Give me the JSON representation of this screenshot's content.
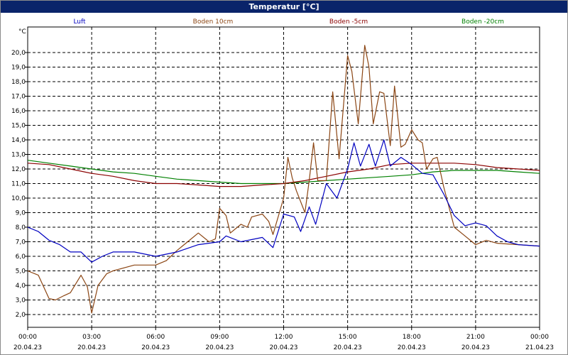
{
  "window": {
    "title": "Temperatur [°C]"
  },
  "chart_data": {
    "type": "line",
    "y_unit": "°C",
    "ylim": [
      1.0,
      21.5
    ],
    "xlim_hours": [
      0,
      24
    ],
    "y_ticks": [
      "2,0",
      "3,0",
      "4,0",
      "5,0",
      "6,0",
      "7,0",
      "8,0",
      "9,0",
      "10,0",
      "11,0",
      "12,0",
      "13,0",
      "14,0",
      "15,0",
      "16,0",
      "17,0",
      "18,0",
      "19,0",
      "20,0"
    ],
    "x_ticks": [
      {
        "time": "00:00",
        "date": "20.04.23"
      },
      {
        "time": "03:00",
        "date": "20.04.23"
      },
      {
        "time": "06:00",
        "date": "20.04.23"
      },
      {
        "time": "09:00",
        "date": "20.04.23"
      },
      {
        "time": "12:00",
        "date": "20.04.23"
      },
      {
        "time": "15:00",
        "date": "20.04.23"
      },
      {
        "time": "18:00",
        "date": "20.04.23"
      },
      {
        "time": "21:00",
        "date": "20.04.23"
      },
      {
        "time": "00:00",
        "date": "21.04.23"
      }
    ],
    "grid": true,
    "legend_position": "top",
    "series": [
      {
        "name": "Luft",
        "color": "#0000c0",
        "points": [
          [
            0,
            8.0
          ],
          [
            0.5,
            7.7
          ],
          [
            1,
            7.1
          ],
          [
            1.5,
            6.8
          ],
          [
            2,
            6.3
          ],
          [
            2.5,
            6.3
          ],
          [
            3,
            5.6
          ],
          [
            3.5,
            6.0
          ],
          [
            4,
            6.3
          ],
          [
            5,
            6.3
          ],
          [
            6,
            6.0
          ],
          [
            7,
            6.3
          ],
          [
            8,
            6.8
          ],
          [
            9,
            7.0
          ],
          [
            9.3,
            7.4
          ],
          [
            10,
            7.0
          ],
          [
            11,
            7.3
          ],
          [
            11.5,
            6.6
          ],
          [
            12,
            8.9
          ],
          [
            12.5,
            8.7
          ],
          [
            12.8,
            7.7
          ],
          [
            13.2,
            9.4
          ],
          [
            13.5,
            8.2
          ],
          [
            14,
            11.0
          ],
          [
            14.5,
            10.0
          ],
          [
            15,
            12.0
          ],
          [
            15.3,
            13.8
          ],
          [
            15.6,
            12.2
          ],
          [
            16,
            13.7
          ],
          [
            16.3,
            12.2
          ],
          [
            16.7,
            14.0
          ],
          [
            17,
            12.2
          ],
          [
            17.5,
            12.8
          ],
          [
            18,
            12.3
          ],
          [
            18.5,
            11.7
          ],
          [
            19,
            11.6
          ],
          [
            19.5,
            10.3
          ],
          [
            20,
            8.8
          ],
          [
            20.5,
            8.1
          ],
          [
            21,
            8.3
          ],
          [
            21.5,
            8.1
          ],
          [
            22,
            7.4
          ],
          [
            22.5,
            7.0
          ],
          [
            23,
            6.8
          ],
          [
            24,
            6.7
          ]
        ]
      },
      {
        "name": "Boden 10cm",
        "color": "#8b4513",
        "points": [
          [
            0,
            5.0
          ],
          [
            0.5,
            4.7
          ],
          [
            1,
            3.1
          ],
          [
            1.3,
            3.0
          ],
          [
            1.7,
            3.3
          ],
          [
            2,
            3.5
          ],
          [
            2.5,
            4.7
          ],
          [
            2.8,
            3.9
          ],
          [
            3,
            2.1
          ],
          [
            3.3,
            4.0
          ],
          [
            3.7,
            4.8
          ],
          [
            4,
            5.0
          ],
          [
            5,
            5.4
          ],
          [
            6,
            5.4
          ],
          [
            6.5,
            5.7
          ],
          [
            7,
            6.4
          ],
          [
            7.5,
            7.0
          ],
          [
            8,
            7.6
          ],
          [
            8.5,
            7.0
          ],
          [
            8.8,
            7.2
          ],
          [
            9,
            9.3
          ],
          [
            9.3,
            8.8
          ],
          [
            9.5,
            7.6
          ],
          [
            10,
            8.2
          ],
          [
            10.3,
            8.0
          ],
          [
            10.5,
            8.7
          ],
          [
            11,
            8.9
          ],
          [
            11.3,
            8.4
          ],
          [
            11.5,
            7.5
          ],
          [
            12,
            10.0
          ],
          [
            12.2,
            12.8
          ],
          [
            12.4,
            11.4
          ],
          [
            12.6,
            10.5
          ],
          [
            13,
            9.0
          ],
          [
            13.2,
            11.2
          ],
          [
            13.4,
            13.8
          ],
          [
            13.6,
            11.2
          ],
          [
            14,
            11.2
          ],
          [
            14.3,
            17.3
          ],
          [
            14.6,
            12.7
          ],
          [
            15,
            19.8
          ],
          [
            15.2,
            18.7
          ],
          [
            15.5,
            15.1
          ],
          [
            15.8,
            20.5
          ],
          [
            16,
            19.0
          ],
          [
            16.2,
            15.1
          ],
          [
            16.5,
            17.3
          ],
          [
            16.7,
            17.2
          ],
          [
            17,
            13.6
          ],
          [
            17.2,
            17.7
          ],
          [
            17.5,
            13.5
          ],
          [
            17.7,
            13.7
          ],
          [
            18,
            14.7
          ],
          [
            18.3,
            14.0
          ],
          [
            18.5,
            13.8
          ],
          [
            18.7,
            12.0
          ],
          [
            19,
            12.7
          ],
          [
            19.2,
            12.8
          ],
          [
            19.5,
            10.8
          ],
          [
            20,
            8.0
          ],
          [
            20.5,
            7.4
          ],
          [
            21,
            6.8
          ],
          [
            21.5,
            7.1
          ],
          [
            22,
            6.9
          ],
          [
            23,
            6.8
          ],
          [
            24,
            6.7
          ]
        ]
      },
      {
        "name": "Boden -5cm",
        "color": "#8b0000",
        "points": [
          [
            0,
            12.4
          ],
          [
            1,
            12.3
          ],
          [
            2,
            12.0
          ],
          [
            3,
            11.7
          ],
          [
            4,
            11.5
          ],
          [
            5,
            11.2
          ],
          [
            6,
            11.0
          ],
          [
            7,
            11.0
          ],
          [
            8,
            10.9
          ],
          [
            9,
            10.8
          ],
          [
            10,
            10.8
          ],
          [
            11,
            10.9
          ],
          [
            12,
            11.0
          ],
          [
            13,
            11.2
          ],
          [
            14,
            11.5
          ],
          [
            15,
            11.8
          ],
          [
            16,
            12.0
          ],
          [
            17,
            12.3
          ],
          [
            18,
            12.4
          ],
          [
            19,
            12.4
          ],
          [
            20,
            12.4
          ],
          [
            21,
            12.3
          ],
          [
            22,
            12.1
          ],
          [
            23,
            12.0
          ],
          [
            24,
            11.9
          ]
        ]
      },
      {
        "name": "Boden -20cm",
        "color": "#008000",
        "points": [
          [
            0,
            12.6
          ],
          [
            1,
            12.4
          ],
          [
            2,
            12.2
          ],
          [
            3,
            12.0
          ],
          [
            4,
            11.8
          ],
          [
            5,
            11.7
          ],
          [
            6,
            11.5
          ],
          [
            7,
            11.3
          ],
          [
            8,
            11.2
          ],
          [
            9,
            11.1
          ],
          [
            10,
            11.0
          ],
          [
            11,
            11.0
          ],
          [
            12,
            11.0
          ],
          [
            13,
            11.1
          ],
          [
            14,
            11.2
          ],
          [
            15,
            11.3
          ],
          [
            16,
            11.4
          ],
          [
            17,
            11.5
          ],
          [
            18,
            11.6
          ],
          [
            19,
            11.8
          ],
          [
            20,
            11.9
          ],
          [
            21,
            11.9
          ],
          [
            22,
            11.9
          ],
          [
            23,
            11.8
          ],
          [
            24,
            11.7
          ]
        ]
      }
    ]
  }
}
